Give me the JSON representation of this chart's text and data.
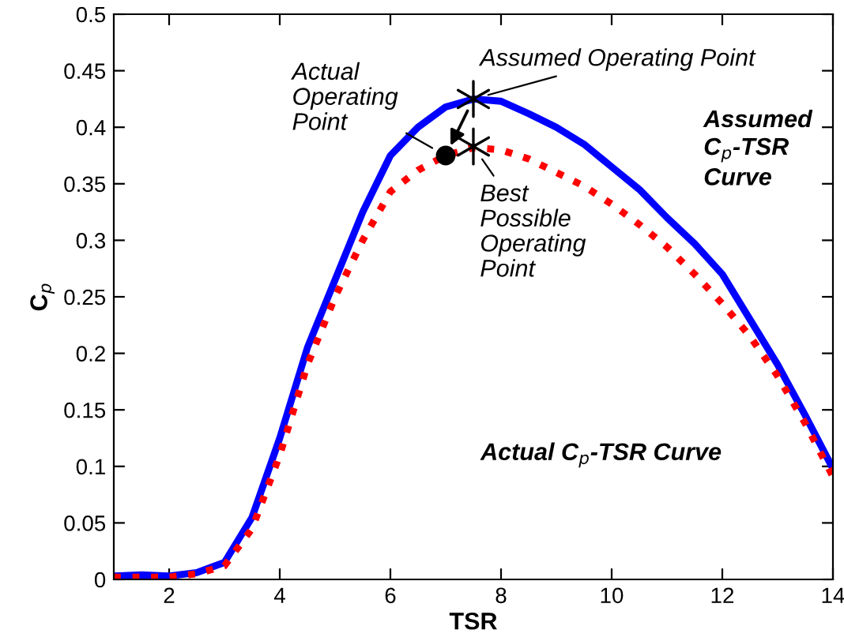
{
  "chart_data": {
    "type": "line",
    "xlabel": "TSR",
    "ylabel": "C$_{p}$",
    "xlim": [
      1,
      14
    ],
    "ylim": [
      0,
      0.5
    ],
    "xticks": [
      2,
      4,
      6,
      8,
      10,
      12,
      14
    ],
    "yticks": [
      0,
      0.05,
      0.1,
      0.15,
      0.2,
      0.25,
      0.3,
      0.35,
      0.4,
      0.45,
      0.5
    ],
    "grid": false,
    "legend": false,
    "series": [
      {
        "color": "#0000ff",
        "line_style": "solid",
        "marker": "none",
        "x": [
          1,
          1.5,
          2,
          2.5,
          3,
          3.5,
          4,
          4.5,
          5,
          5.5,
          6,
          6.5,
          7,
          7.5,
          8,
          8.5,
          9,
          9.5,
          10,
          10.5,
          11,
          11.5,
          12,
          12.5,
          13,
          13.5,
          14
        ],
        "values": [
          0.003,
          0.004,
          0.003,
          0.006,
          0.015,
          0.055,
          0.125,
          0.205,
          0.265,
          0.325,
          0.375,
          0.4,
          0.418,
          0.425,
          0.423,
          0.412,
          0.4,
          0.385,
          0.365,
          0.345,
          0.32,
          0.297,
          0.27,
          0.23,
          0.19,
          0.145,
          0.098
        ]
      },
      {
        "color": "#ff0000",
        "line_style": "dotted",
        "marker": "none",
        "x": [
          1,
          1.5,
          2,
          2.5,
          3,
          3.5,
          4,
          4.5,
          5,
          5.5,
          6,
          6.5,
          7,
          7.5,
          8,
          8.5,
          9,
          9.5,
          10,
          10.5,
          11,
          11.5,
          12,
          12.5,
          13,
          13.5,
          14
        ],
        "values": [
          0.002,
          0.002,
          0.002,
          0.005,
          0.012,
          0.045,
          0.11,
          0.19,
          0.25,
          0.3,
          0.343,
          0.362,
          0.375,
          0.382,
          0.38,
          0.372,
          0.36,
          0.348,
          0.332,
          0.314,
          0.294,
          0.27,
          0.244,
          0.215,
          0.18,
          0.138,
          0.091
        ]
      },
      {
        "type": "scatter",
        "color": "#000000",
        "marker": "cross",
        "x": [
          7.5,
          7.5
        ],
        "values": [
          0.425,
          0.383
        ]
      },
      {
        "type": "scatter",
        "color": "#000000",
        "marker": "circle",
        "x": [
          7.0
        ],
        "values": [
          0.375
        ]
      }
    ],
    "annotations": [
      "Assumed Operating Point",
      "Actual\nOperating\nPoint",
      "Best\nPossible\nOperating\nPoint",
      "Assumed\nC$_{p}$-TSR\nCurve",
      "Actual C$_{p}$-TSR Curve"
    ]
  }
}
